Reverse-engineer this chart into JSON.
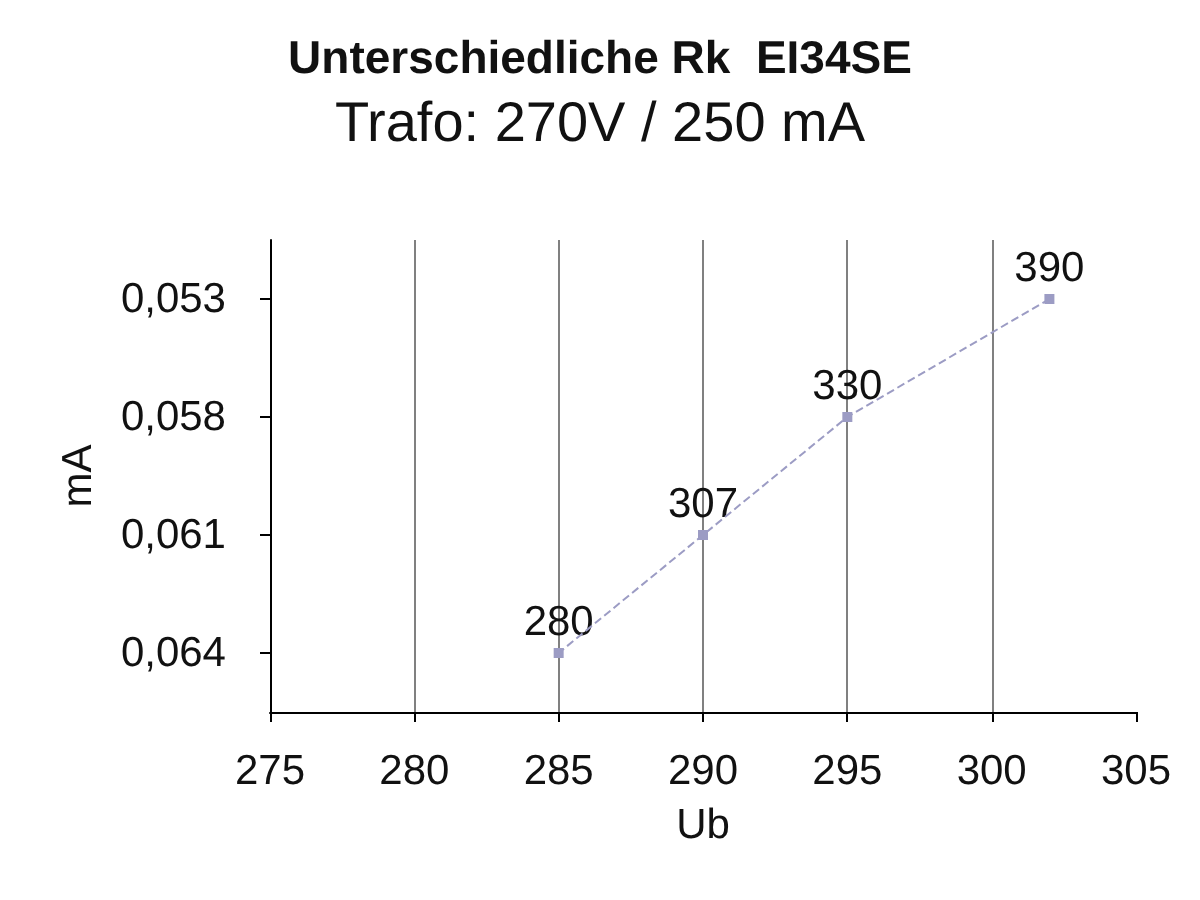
{
  "chart_data": {
    "type": "line",
    "title": "Unterschiedliche Rk  EI34SE",
    "subtitle": "Trafo: 270V / 250 mA",
    "xlabel": "Ub",
    "ylabel": "mA",
    "orientation": "horizontal",
    "categories": [
      "0,053",
      "0,058",
      "0,061",
      "0,064"
    ],
    "values": [
      302,
      295,
      290,
      285
    ],
    "color": "#9c9cc4",
    "annotations": [
      {
        "text": "390",
        "x": 302,
        "y": "0,053"
      },
      {
        "text": "330",
        "x": 295,
        "y": "0,058"
      },
      {
        "text": "307",
        "x": 290,
        "y": "0,061"
      },
      {
        "text": "280",
        "x": 285,
        "y": "0,064"
      }
    ],
    "xlim": [
      275,
      305
    ],
    "xticks": [
      275,
      280,
      285,
      290,
      295,
      300,
      305
    ],
    "grid": "x",
    "marker": "square",
    "line_style": "dashed"
  }
}
